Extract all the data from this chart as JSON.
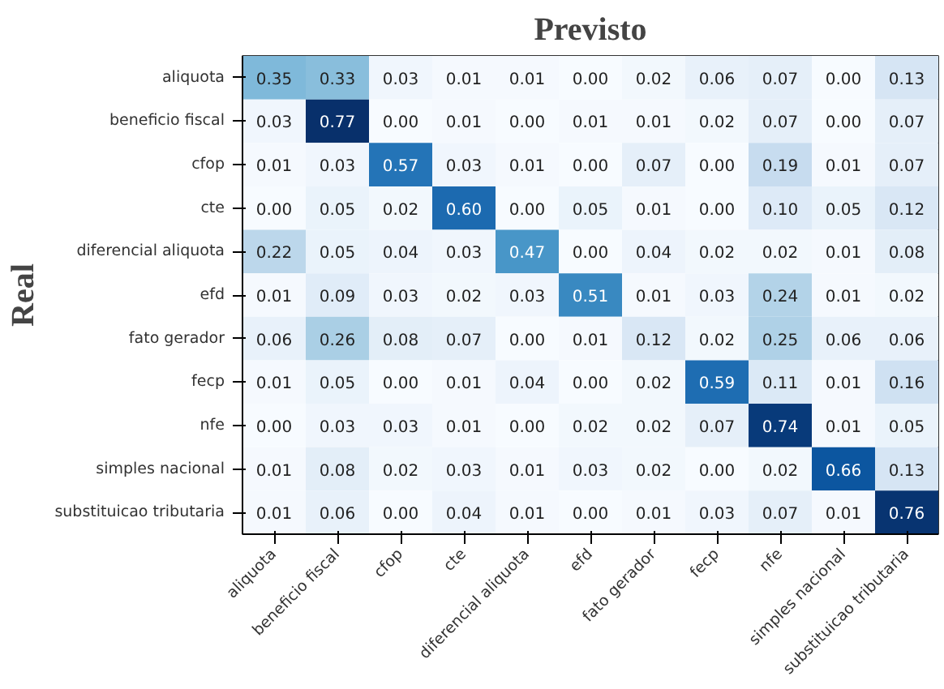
{
  "chart_data": {
    "type": "heatmap",
    "title": "Previsto",
    "ylabel": "Real",
    "data_labels": true,
    "categories": [
      "aliquota",
      "beneficio fiscal",
      "cfop",
      "cte",
      "diferencial aliquota",
      "efd",
      "fato gerador",
      "fecp",
      "nfe",
      "simples nacional",
      "substituicao tributaria"
    ],
    "y_categories": [
      "aliquota",
      "beneficio fiscal",
      "cfop",
      "cte",
      "diferencial aliquota",
      "efd",
      "fato gerador",
      "fecp",
      "nfe",
      "simples nacional",
      "substituicao tributaria"
    ],
    "cells": [
      [
        0.35,
        0.33,
        0.03,
        0.01,
        0.01,
        0.0,
        0.02,
        0.06,
        0.07,
        0.0,
        0.13
      ],
      [
        0.03,
        0.77,
        0.0,
        0.01,
        0.0,
        0.01,
        0.01,
        0.02,
        0.07,
        0.0,
        0.07
      ],
      [
        0.01,
        0.03,
        0.57,
        0.03,
        0.01,
        0.0,
        0.07,
        0.0,
        0.19,
        0.01,
        0.07
      ],
      [
        0.0,
        0.05,
        0.02,
        0.6,
        0.0,
        0.05,
        0.01,
        0.0,
        0.1,
        0.05,
        0.12
      ],
      [
        0.22,
        0.05,
        0.04,
        0.03,
        0.47,
        0.0,
        0.04,
        0.02,
        0.02,
        0.01,
        0.08
      ],
      [
        0.01,
        0.09,
        0.03,
        0.02,
        0.03,
        0.51,
        0.01,
        0.03,
        0.24,
        0.01,
        0.02
      ],
      [
        0.06,
        0.26,
        0.08,
        0.07,
        0.0,
        0.01,
        0.12,
        0.02,
        0.25,
        0.06,
        0.06
      ],
      [
        0.01,
        0.05,
        0.0,
        0.01,
        0.04,
        0.0,
        0.02,
        0.59,
        0.11,
        0.01,
        0.16
      ],
      [
        0.0,
        0.03,
        0.03,
        0.01,
        0.0,
        0.02,
        0.02,
        0.07,
        0.74,
        0.01,
        0.05
      ],
      [
        0.01,
        0.08,
        0.02,
        0.03,
        0.01,
        0.03,
        0.02,
        0.0,
        0.02,
        0.66,
        0.13
      ],
      [
        0.01,
        0.06,
        0.0,
        0.04,
        0.01,
        0.0,
        0.01,
        0.03,
        0.07,
        0.01,
        0.76
      ]
    ],
    "cell_labels": [
      [
        "0.35",
        "0.33",
        "0.03",
        "0.01",
        "0.01",
        "0.00",
        "0.02",
        "0.06",
        "0.07",
        "0.00",
        "0.13"
      ],
      [
        "0.03",
        "0.77",
        "0.00",
        "0.01",
        "0.00",
        "0.01",
        "0.01",
        "0.02",
        "0.07",
        "0.00",
        "0.07"
      ],
      [
        "0.01",
        "0.03",
        "0.57",
        "0.03",
        "0.01",
        "0.00",
        "0.07",
        "0.00",
        "0.19",
        "0.01",
        "0.07"
      ],
      [
        "0.00",
        "0.05",
        "0.02",
        "0.60",
        "0.00",
        "0.05",
        "0.01",
        "0.00",
        "0.10",
        "0.05",
        "0.12"
      ],
      [
        "0.22",
        "0.05",
        "0.04",
        "0.03",
        "0.47",
        "0.00",
        "0.04",
        "0.02",
        "0.02",
        "0.01",
        "0.08"
      ],
      [
        "0.01",
        "0.09",
        "0.03",
        "0.02",
        "0.03",
        "0.51",
        "0.01",
        "0.03",
        "0.24",
        "0.01",
        "0.02"
      ],
      [
        "0.06",
        "0.26",
        "0.08",
        "0.07",
        "0.00",
        "0.01",
        "0.12",
        "0.02",
        "0.25",
        "0.06",
        "0.06"
      ],
      [
        "0.01",
        "0.05",
        "0.00",
        "0.01",
        "0.04",
        "0.00",
        "0.02",
        "0.59",
        "0.11",
        "0.01",
        "0.16"
      ],
      [
        "0.00",
        "0.03",
        "0.03",
        "0.01",
        "0.00",
        "0.02",
        "0.02",
        "0.07",
        "0.74",
        "0.01",
        "0.05"
      ],
      [
        "0.01",
        "0.08",
        "0.02",
        "0.03",
        "0.01",
        "0.03",
        "0.02",
        "0.00",
        "0.02",
        "0.66",
        "0.13"
      ],
      [
        "0.01",
        "0.06",
        "0.00",
        "0.04",
        "0.01",
        "0.00",
        "0.01",
        "0.03",
        "0.07",
        "0.01",
        "0.76"
      ]
    ]
  }
}
